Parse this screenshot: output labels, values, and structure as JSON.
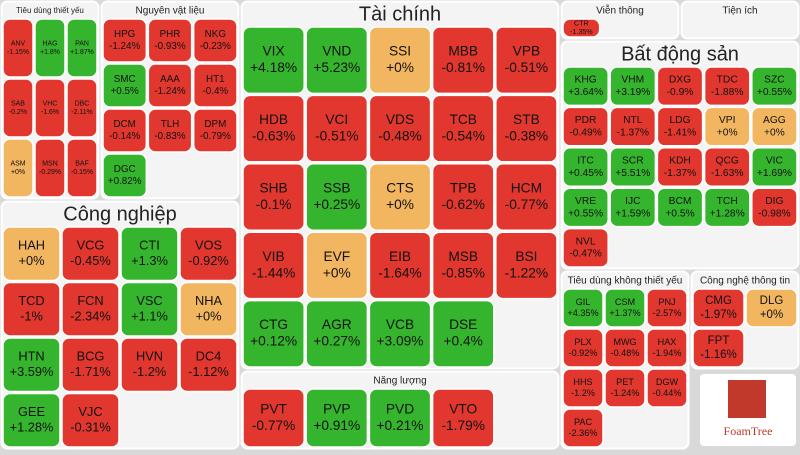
{
  "chart_data": {
    "type": "treemap",
    "colors": {
      "down": "#e2372e",
      "up": "#35b52d",
      "flat": "#f2b660"
    },
    "watermark": "FoamTree",
    "groups": [
      {
        "name": "Tiêu dùng thiết yếu",
        "tickers": [
          "ANV",
          "HAG",
          "PAN",
          "SAB",
          "VHC",
          "DBC",
          "ASM",
          "MSN",
          "BAF"
        ],
        "values": [
          -1.15,
          1.8,
          1.87,
          -0.2,
          -1.6,
          -2.11,
          0,
          -0.29,
          -0.15
        ],
        "value_labels": [
          "-1.15%",
          "+1.8%",
          "+1.87%",
          "-0.2%",
          "-1.6%",
          "-2.11%",
          "+0%",
          "-0.29%",
          "-0.15%"
        ]
      },
      {
        "name": "Nguyên vật liệu",
        "tickers": [
          "HPG",
          "PHR",
          "NKG",
          "SMC",
          "AAA",
          "HT1",
          "DCM",
          "TLH",
          "DPM",
          "DGC"
        ],
        "values": [
          -1.24,
          -0.93,
          -0.23,
          0.5,
          -1.24,
          -0.4,
          -0.14,
          -0.83,
          -0.79,
          0.82
        ],
        "value_labels": [
          "-1.24%",
          "-0.93%",
          "-0.23%",
          "+0.5%",
          "-1.24%",
          "-0.4%",
          "-0.14%",
          "-0.83%",
          "-0.79%",
          "+0.82%"
        ]
      },
      {
        "name": "Tài chính",
        "tickers": [
          "VIX",
          "VND",
          "SSI",
          "MBB",
          "VPB",
          "HDB",
          "VCI",
          "VDS",
          "TCB",
          "STB",
          "SHB",
          "SSB",
          "CTS",
          "TPB",
          "HCM",
          "VIB",
          "EVF",
          "EIB",
          "MSB",
          "BSI",
          "CTG",
          "AGR",
          "VCB",
          "DSE"
        ],
        "values": [
          4.18,
          5.23,
          0,
          -0.81,
          -0.51,
          -0.63,
          -0.51,
          -0.48,
          -0.54,
          -0.38,
          -0.1,
          0.25,
          0,
          -0.62,
          -0.77,
          -1.44,
          0,
          -1.64,
          -0.85,
          -1.22,
          0.12,
          0.27,
          3.09,
          0.4
        ],
        "value_labels": [
          "+4.18%",
          "+5.23%",
          "+0%",
          "-0.81%",
          "-0.51%",
          "-0.63%",
          "-0.51%",
          "-0.48%",
          "-0.54%",
          "-0.38%",
          "-0.1%",
          "+0.25%",
          "+0%",
          "-0.62%",
          "-0.77%",
          "-1.44%",
          "+0%",
          "-1.64%",
          "-0.85%",
          "-1.22%",
          "+0.12%",
          "+0.27%",
          "+3.09%",
          "+0.4%"
        ]
      },
      {
        "name": "Viễn thông",
        "tickers": [
          "CTR"
        ],
        "values": [
          -1.35
        ],
        "value_labels": [
          "-1.35%"
        ]
      },
      {
        "name": "Bất động sản",
        "tickers": [
          "KHG",
          "VHM",
          "DXG",
          "TDC",
          "SZC",
          "PDR",
          "NTL",
          "LDG",
          "VPI",
          "AGG",
          "ITC",
          "SCR",
          "KDH",
          "QCG",
          "VIC",
          "VRE",
          "IJC",
          "BCM",
          "TCH",
          "DIG",
          "NVL"
        ],
        "values": [
          3.64,
          3.19,
          -0.9,
          -1.88,
          0.55,
          -0.49,
          -1.37,
          -1.41,
          0,
          0,
          0.45,
          5.51,
          -1.37,
          -1.63,
          1.69,
          0.55,
          1.59,
          0.5,
          1.28,
          -0.98,
          -0.47
        ],
        "value_labels": [
          "+3.64%",
          "+3.19%",
          "-0.9%",
          "-1.88%",
          "+0.55%",
          "-0.49%",
          "-1.37%",
          "-1.41%",
          "+0%",
          "+0%",
          "+0.45%",
          "+5.51%",
          "-1.37%",
          "-1.63%",
          "+1.69%",
          "+0.55%",
          "+1.59%",
          "+0.5%",
          "+1.28%",
          "-0.98%",
          "-0.47%"
        ]
      },
      {
        "name": "Tiện ích",
        "tickers": [],
        "values": [],
        "value_labels": []
      },
      {
        "name": "Công nghiệp",
        "tickers": [
          "HAH",
          "VCG",
          "CTI",
          "VOS",
          "TCD",
          "FCN",
          "VSC",
          "NHA",
          "HTN",
          "BCG",
          "HVN",
          "DC4",
          "GEE",
          "VJC"
        ],
        "values": [
          0,
          -0.45,
          1.3,
          -0.92,
          -1,
          -2.34,
          1.1,
          0,
          3.59,
          -1.71,
          -1.2,
          -1.12,
          1.28,
          -0.31
        ],
        "value_labels": [
          "+0%",
          "-0.45%",
          "+1.3%",
          "-0.92%",
          "-1%",
          "-2.34%",
          "+1.1%",
          "+0%",
          "+3.59%",
          "-1.71%",
          "-1.2%",
          "-1.12%",
          "+1.28%",
          "-0.31%"
        ]
      },
      {
        "name": "Năng lượng",
        "tickers": [
          "PVT",
          "PVP",
          "PVD",
          "VTO"
        ],
        "values": [
          -0.77,
          0.91,
          0.21,
          -1.79
        ],
        "value_labels": [
          "-0.77%",
          "+0.91%",
          "+0.21%",
          "-1.79%"
        ]
      },
      {
        "name": "Tiêu dùng không thiết yếu",
        "tickers": [
          "GIL",
          "CSM",
          "PNJ",
          "PLX",
          "MWG",
          "HAX",
          "HHS",
          "PET",
          "DGW",
          "PAC"
        ],
        "values": [
          4.35,
          1.37,
          -2.57,
          -0.92,
          -0.48,
          -1.94,
          -1.2,
          -1.24,
          -0.44,
          -2.36
        ],
        "value_labels": [
          "+4.35%",
          "+1.37%",
          "-2.57%",
          "-0.92%",
          "-0.48%",
          "-1.94%",
          "-1.2%",
          "-1.24%",
          "-0.44%",
          "-2.36%"
        ]
      },
      {
        "name": "Công nghệ thông tin",
        "tickers": [
          "CMG",
          "DLG",
          "FPT"
        ],
        "values": [
          -1.97,
          0,
          -1.16
        ],
        "value_labels": [
          "-1.97%",
          "+0%",
          "-1.16%"
        ]
      }
    ]
  }
}
